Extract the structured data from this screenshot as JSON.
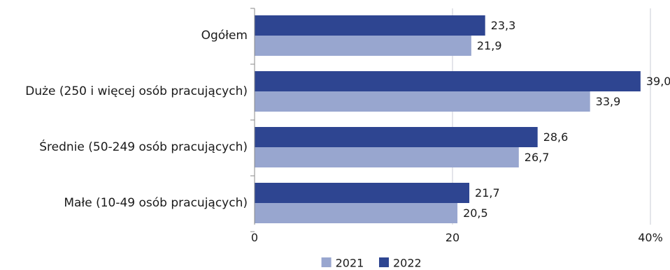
{
  "chart_data": {
    "type": "bar",
    "orientation": "horizontal",
    "categories": [
      "Ogółem",
      "Duże (250 i więcej osób pracujących)",
      "Średnie (50-249 osób pracujących)",
      "Małe (10-49 osób pracujących)"
    ],
    "series": [
      {
        "name": "2022",
        "color": "#2e4591",
        "values": [
          23.3,
          39.0,
          28.6,
          21.7
        ],
        "labels": [
          "23,3",
          "39,0",
          "28,6",
          "21,7"
        ]
      },
      {
        "name": "2021",
        "color": "#98a6cf",
        "values": [
          21.9,
          33.9,
          26.7,
          20.5
        ],
        "labels": [
          "21,9",
          "33,9",
          "26,7",
          "20,5"
        ]
      }
    ],
    "xlim": [
      0,
      40
    ],
    "xticks": [
      {
        "value": 0,
        "label": "0"
      },
      {
        "value": 20,
        "label": "20"
      },
      {
        "value": 40,
        "label": "40%"
      }
    ],
    "legend": {
      "position": "bottom",
      "items": [
        {
          "name": "2021",
          "color": "#98a6cf"
        },
        {
          "name": "2022",
          "color": "#2e4591"
        }
      ]
    },
    "grid": true,
    "title": "",
    "xlabel": "",
    "ylabel": ""
  }
}
